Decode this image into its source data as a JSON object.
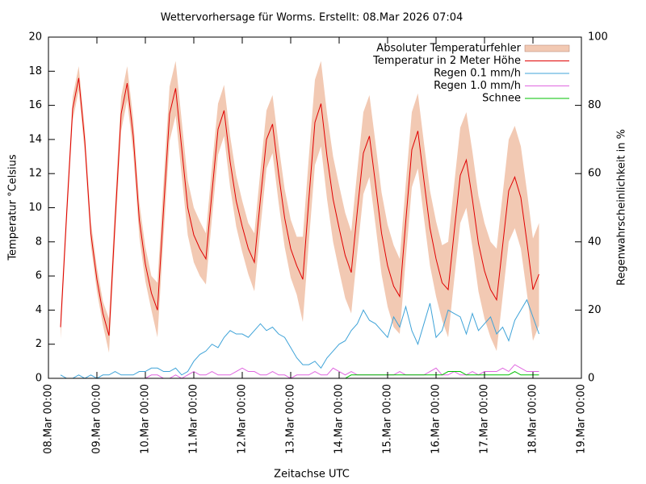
{
  "chart_data": {
    "type": "line",
    "title": "Wettervorhersage für Worms. Erstellt: 08.Mar 2026 07:04",
    "x_label": "Zeitachse UTC",
    "y_label": "Temperatur °Celsius",
    "y2_label": "Regenwahrscheinlichkeit in %",
    "xlim": [
      0,
      264
    ],
    "ylim": [
      0,
      20
    ],
    "y2lim": [
      0,
      100
    ],
    "xticks": [
      {
        "value": 0,
        "label": "08.Mar 00:00"
      },
      {
        "value": 24,
        "label": "09.Mar 00:00"
      },
      {
        "value": 48,
        "label": "10.Mar 00:00"
      },
      {
        "value": 72,
        "label": "11.Mar 00:00"
      },
      {
        "value": 96,
        "label": "12.Mar 00:00"
      },
      {
        "value": 120,
        "label": "13.Mar 00:00"
      },
      {
        "value": 144,
        "label": "14.Mar 00:00"
      },
      {
        "value": 168,
        "label": "15.Mar 00:00"
      },
      {
        "value": 192,
        "label": "16.Mar 00:00"
      },
      {
        "value": 216,
        "label": "17.Mar 00:00"
      },
      {
        "value": 240,
        "label": "18.Mar 00:00"
      },
      {
        "value": 264,
        "label": "19.Mar 00:00"
      }
    ],
    "yticks": [
      0,
      2,
      4,
      6,
      8,
      10,
      12,
      14,
      16,
      18,
      20
    ],
    "y2ticks": [
      0,
      20,
      40,
      60,
      80,
      100
    ],
    "legend": "top-right",
    "x": [
      6,
      9,
      12,
      15,
      18,
      21,
      24,
      27,
      30,
      33,
      36,
      39,
      42,
      45,
      48,
      51,
      54,
      57,
      60,
      63,
      66,
      69,
      72,
      75,
      78,
      81,
      84,
      87,
      90,
      93,
      96,
      99,
      102,
      105,
      108,
      111,
      114,
      117,
      120,
      123,
      126,
      129,
      132,
      135,
      138,
      141,
      144,
      147,
      150,
      153,
      156,
      159,
      162,
      165,
      168,
      171,
      174,
      177,
      180,
      183,
      186,
      189,
      192,
      195,
      198,
      201,
      204,
      207,
      210,
      213,
      216,
      219,
      222,
      225,
      228,
      231,
      234,
      237,
      240,
      243
    ],
    "series": [
      {
        "name": "Absoluter Temperaturfehler",
        "kind": "band",
        "color": "#f2c9b3",
        "values": [
          0.7,
          0.7,
          0.7,
          0.7,
          0.7,
          0.7,
          0.7,
          0.7,
          1.0,
          1.0,
          1.0,
          1.0,
          1.0,
          1.0,
          1.0,
          1.0,
          1.6,
          1.6,
          1.6,
          1.6,
          1.6,
          1.6,
          1.6,
          1.6,
          1.5,
          1.5,
          1.5,
          1.5,
          1.5,
          1.5,
          1.5,
          1.5,
          1.7,
          1.7,
          1.7,
          1.7,
          1.7,
          1.7,
          1.7,
          1.7,
          2.5,
          2.5,
          2.5,
          2.5,
          2.5,
          2.5,
          2.5,
          2.5,
          2.4,
          2.4,
          2.4,
          2.4,
          2.4,
          2.4,
          2.4,
          2.4,
          2.2,
          2.2,
          2.2,
          2.2,
          2.2,
          2.2,
          2.2,
          2.2,
          2.8,
          2.8,
          2.8,
          2.8,
          2.8,
          2.8,
          2.8,
          2.8,
          3.0,
          3.0,
          3.0,
          3.0,
          3.0,
          3.0,
          3.0,
          3.0
        ]
      },
      {
        "name": "Temperatur in 2 Meter Höhe",
        "color": "#e00000",
        "values": [
          3.0,
          9.6,
          15.8,
          17.6,
          13.9,
          8.5,
          5.8,
          3.8,
          2.5,
          9.2,
          15.5,
          17.3,
          14.2,
          9.3,
          6.7,
          5.0,
          4.0,
          9.9,
          15.5,
          17.0,
          13.5,
          10.0,
          8.4,
          7.6,
          7.0,
          10.9,
          14.6,
          15.7,
          12.7,
          10.4,
          8.9,
          7.6,
          6.8,
          10.5,
          14.0,
          14.9,
          12.0,
          9.4,
          7.6,
          6.6,
          5.8,
          10.5,
          15.0,
          16.1,
          13.0,
          10.5,
          8.8,
          7.2,
          6.2,
          9.8,
          13.2,
          14.2,
          11.4,
          8.5,
          6.6,
          5.4,
          4.8,
          9.2,
          13.4,
          14.5,
          11.6,
          8.8,
          7.0,
          5.6,
          5.2,
          8.6,
          11.9,
          12.8,
          10.5,
          7.9,
          6.3,
          5.2,
          4.6,
          7.8,
          11.0,
          11.8,
          10.6,
          8.0,
          5.2,
          6.1
        ]
      },
      {
        "name": "Regen 0.1 mm/h",
        "axis": "y2",
        "color": "#3fa3d8",
        "values": [
          1,
          0,
          0,
          1,
          0,
          1,
          0,
          1,
          1,
          2,
          1,
          1,
          1,
          2,
          2,
          3,
          3,
          2,
          2,
          3,
          1,
          2,
          5,
          7,
          8,
          10,
          9,
          12,
          14,
          13,
          13,
          12,
          14,
          16,
          14,
          15,
          13,
          12,
          9,
          6,
          4,
          4,
          5,
          3,
          6,
          8,
          10,
          11,
          14,
          16,
          20,
          17,
          16,
          14,
          12,
          18,
          15,
          21,
          14,
          10,
          16,
          22,
          12,
          14,
          20,
          19,
          18,
          13,
          19,
          14,
          16,
          18,
          13,
          15,
          11,
          17,
          20,
          23,
          18,
          13
        ]
      },
      {
        "name": "Regen 1.0 mm/h",
        "axis": "y2",
        "color": "#e066e0",
        "values": [
          0,
          0,
          0,
          0,
          0,
          0,
          0,
          0,
          0,
          0,
          0,
          0,
          0,
          0,
          0,
          1,
          1,
          0,
          0,
          1,
          0,
          1,
          2,
          1,
          1,
          2,
          1,
          1,
          1,
          2,
          3,
          2,
          2,
          1,
          1,
          2,
          1,
          1,
          0,
          1,
          1,
          1,
          2,
          1,
          1,
          3,
          2,
          1,
          2,
          1,
          1,
          1,
          1,
          1,
          1,
          1,
          2,
          1,
          1,
          1,
          1,
          2,
          3,
          1,
          1,
          2,
          1,
          1,
          2,
          1,
          2,
          2,
          2,
          3,
          2,
          4,
          3,
          2,
          2,
          2
        ]
      },
      {
        "name": "Schnee",
        "axis": "y2",
        "color": "#00c000",
        "values": [
          0,
          0,
          0,
          0,
          0,
          0,
          0,
          0,
          0,
          0,
          0,
          0,
          0,
          0,
          0,
          0,
          0,
          0,
          0,
          0,
          0,
          0,
          0,
          0,
          0,
          0,
          0,
          0,
          0,
          0,
          0,
          0,
          0,
          0,
          0,
          0,
          0,
          0,
          0,
          0,
          0,
          0,
          0,
          0,
          0,
          0,
          0,
          0,
          1,
          1,
          1,
          1,
          1,
          1,
          1,
          1,
          1,
          1,
          1,
          1,
          1,
          1,
          1,
          1,
          2,
          2,
          2,
          1,
          1,
          1,
          1,
          1,
          1,
          1,
          1,
          2,
          1,
          1,
          1,
          1
        ]
      }
    ]
  }
}
